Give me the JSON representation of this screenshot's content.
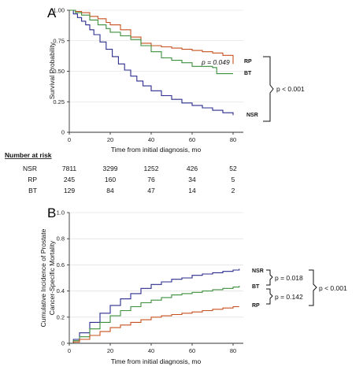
{
  "colors": {
    "NSR": "#2b2b8f",
    "RP": "#c8501e",
    "BT": "#3c8f3c"
  },
  "chart_data": [
    {
      "panel_label": "A",
      "type": "line",
      "xlabel": "Time from initial diagnosis, mo",
      "ylabel": "Survival Probability",
      "xlim": [
        0,
        85
      ],
      "ylim": [
        0,
        1.0
      ],
      "x_ticks": [
        0,
        20,
        40,
        60,
        80
      ],
      "y_ticks": [
        0,
        0.25,
        0.5,
        0.75,
        1.0
      ],
      "y_tick_labels": [
        "0",
        "0.25",
        "0.50",
        "0.75",
        "1.00"
      ],
      "grid": true,
      "step": true,
      "series": [
        {
          "name": "NSR",
          "label": "NSR",
          "x": [
            0,
            2,
            4,
            6,
            8,
            10,
            12,
            15,
            18,
            21,
            24,
            27,
            30,
            33,
            36,
            40,
            45,
            50,
            55,
            60,
            65,
            70,
            75,
            80
          ],
          "y": [
            1.0,
            0.97,
            0.94,
            0.91,
            0.88,
            0.84,
            0.8,
            0.74,
            0.68,
            0.62,
            0.56,
            0.51,
            0.46,
            0.42,
            0.38,
            0.34,
            0.3,
            0.27,
            0.24,
            0.22,
            0.2,
            0.18,
            0.16,
            0.14
          ]
        },
        {
          "name": "RP",
          "label": "RP",
          "x": [
            0,
            3,
            6,
            10,
            14,
            18,
            20,
            25,
            30,
            35,
            40,
            45,
            50,
            55,
            60,
            65,
            70,
            75,
            78,
            80
          ],
          "y": [
            1.0,
            0.99,
            0.98,
            0.95,
            0.93,
            0.9,
            0.88,
            0.84,
            0.78,
            0.73,
            0.71,
            0.7,
            0.69,
            0.68,
            0.67,
            0.66,
            0.65,
            0.63,
            0.63,
            0.56
          ]
        },
        {
          "name": "BT",
          "label": "BT",
          "x": [
            0,
            3,
            6,
            10,
            14,
            18,
            20,
            25,
            30,
            35,
            40,
            45,
            50,
            55,
            60,
            65,
            70,
            72,
            80
          ],
          "y": [
            1.0,
            0.98,
            0.96,
            0.92,
            0.88,
            0.85,
            0.82,
            0.79,
            0.76,
            0.71,
            0.66,
            0.61,
            0.59,
            0.57,
            0.54,
            0.54,
            0.53,
            0.48,
            0.48
          ]
        }
      ],
      "annotations": [
        {
          "text": "p = 0.049",
          "between": [
            "RP",
            "BT"
          ]
        },
        {
          "text": "p < 0.001",
          "between": [
            "NSR",
            "RP/BT"
          ]
        }
      ]
    },
    {
      "panel_label": "B",
      "type": "line",
      "xlabel": "Time from initial diagnosis, mo",
      "ylabel": [
        "Cumulative Incidence of Prostate",
        "Cancer-Specific Mortality"
      ],
      "xlim": [
        0,
        85
      ],
      "ylim": [
        0,
        1.0
      ],
      "x_ticks": [
        0,
        20,
        40,
        60,
        80
      ],
      "y_ticks": [
        0,
        0.2,
        0.4,
        0.6,
        0.8,
        1.0
      ],
      "y_tick_labels": [
        "0",
        "0.2",
        "0.4",
        "0.6",
        "0.8",
        "1.0"
      ],
      "grid": true,
      "step": true,
      "series": [
        {
          "name": "NSR",
          "label": "NSR",
          "x": [
            0,
            2,
            5,
            10,
            15,
            20,
            25,
            30,
            35,
            40,
            45,
            50,
            55,
            60,
            65,
            70,
            75,
            80,
            83
          ],
          "y": [
            0,
            0.03,
            0.08,
            0.16,
            0.23,
            0.29,
            0.34,
            0.38,
            0.42,
            0.45,
            0.47,
            0.49,
            0.5,
            0.52,
            0.53,
            0.54,
            0.55,
            0.56,
            0.57
          ]
        },
        {
          "name": "BT",
          "label": "BT",
          "x": [
            0,
            2,
            5,
            10,
            15,
            20,
            25,
            30,
            35,
            40,
            45,
            50,
            55,
            60,
            65,
            70,
            75,
            80,
            83
          ],
          "y": [
            0,
            0.02,
            0.05,
            0.11,
            0.16,
            0.21,
            0.25,
            0.28,
            0.31,
            0.33,
            0.35,
            0.37,
            0.38,
            0.39,
            0.4,
            0.41,
            0.42,
            0.43,
            0.44
          ]
        },
        {
          "name": "RP",
          "label": "RP",
          "x": [
            0,
            2,
            5,
            10,
            15,
            20,
            25,
            30,
            35,
            40,
            45,
            50,
            55,
            60,
            65,
            70,
            75,
            80,
            83
          ],
          "y": [
            0,
            0.01,
            0.03,
            0.06,
            0.09,
            0.12,
            0.14,
            0.16,
            0.18,
            0.2,
            0.21,
            0.22,
            0.23,
            0.24,
            0.25,
            0.26,
            0.27,
            0.28,
            0.28
          ]
        }
      ],
      "annotations": [
        {
          "text": "p = 0.018",
          "between": [
            "NSR",
            "BT"
          ]
        },
        {
          "text": "p = 0.142",
          "between": [
            "BT",
            "RP"
          ]
        },
        {
          "text": "p < 0.001",
          "between": [
            "NSR",
            "RP"
          ]
        }
      ]
    }
  ],
  "risk_table": {
    "title": "Number at risk",
    "rows": [
      {
        "label": "NSR",
        "values": [
          "7811",
          "3299",
          "1252",
          "426",
          "52"
        ]
      },
      {
        "label": "RP",
        "values": [
          "245",
          "160",
          "76",
          "34",
          "5"
        ]
      },
      {
        "label": "BT",
        "values": [
          "129",
          "84",
          "47",
          "14",
          "2"
        ]
      }
    ]
  }
}
